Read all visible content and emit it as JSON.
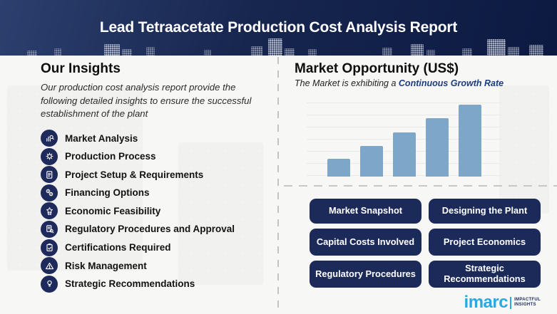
{
  "header": {
    "title": "Lead Tetraacetate Production Cost Analysis Report"
  },
  "insights": {
    "heading": "Our Insights",
    "description": "Our production cost analysis report provide the following detailed insights to ensure the successful establishment of the plant",
    "items": [
      {
        "icon": "market-analysis",
        "label": "Market Analysis"
      },
      {
        "icon": "production-process",
        "label": "Production Process"
      },
      {
        "icon": "project-setup",
        "label": "Project Setup & Requirements"
      },
      {
        "icon": "financing-options",
        "label": "Financing Options"
      },
      {
        "icon": "economic-feasibility",
        "label": "Economic Feasibility"
      },
      {
        "icon": "regulatory-procedures",
        "label": "Regulatory Procedures and Approval"
      },
      {
        "icon": "certifications-required",
        "label": "Certifications Required"
      },
      {
        "icon": "risk-management",
        "label": "Risk Management"
      },
      {
        "icon": "strategic-recommendations",
        "label": "Strategic Recommendations"
      }
    ]
  },
  "market": {
    "heading": "Market Opportunity (US$)",
    "subtitle_prefix": "The Market is exhibiting a ",
    "subtitle_highlight": "Continuous Growth Rate"
  },
  "chart_data": {
    "type": "bar",
    "title": "Market Opportunity (US$)",
    "categories": [
      "",
      "",
      "",
      "",
      ""
    ],
    "values": [
      25,
      43,
      62,
      82,
      101
    ],
    "values_unit": "relative height (no axis labels shown in image)",
    "xlabel": "",
    "ylabel": "",
    "bar_color": "#7da6c8",
    "grid": "faint horizontal gridlines",
    "legend": false
  },
  "buttons": [
    "Market Snapshot",
    "Designing the Plant",
    "Capital Costs Involved",
    "Project Economics",
    "Regulatory Procedures",
    "Strategic Recommendations"
  ],
  "logo": {
    "name": "imarc",
    "tagline_line1": "IMPACTFUL",
    "tagline_line2": "INSIGHTS"
  },
  "colors": {
    "header_navy_light": "#2c3f6e",
    "header_navy_dark": "#0c1a42",
    "accent_navy": "#1c2a5a",
    "icon_navy": "#1e2a5c",
    "bar_blue": "#7da6c8",
    "highlight_text_navy": "#1e3c80",
    "logo_blue": "#29a9e0",
    "background": "#f7f7f5"
  }
}
